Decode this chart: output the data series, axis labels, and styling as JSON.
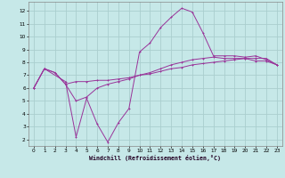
{
  "xlabel": "Windchill (Refroidissement éolien,°C)",
  "x_ticks": [
    0,
    1,
    2,
    3,
    4,
    5,
    6,
    7,
    8,
    9,
    10,
    11,
    12,
    13,
    14,
    15,
    16,
    17,
    18,
    19,
    20,
    21,
    22,
    23
  ],
  "y_ticks": [
    2,
    3,
    4,
    5,
    6,
    7,
    8,
    9,
    10,
    11,
    12
  ],
  "ylim": [
    1.5,
    12.7
  ],
  "xlim": [
    -0.5,
    23.5
  ],
  "bg_color": "#c6e8e8",
  "line_color": "#993399",
  "grid_color": "#aacece",
  "line1_x": [
    0,
    1,
    2,
    3,
    4,
    5,
    6,
    7,
    8,
    9,
    10,
    11,
    12,
    13,
    14,
    15,
    16,
    17,
    18,
    19,
    20,
    21,
    22,
    23
  ],
  "line1_y": [
    6.0,
    7.5,
    7.2,
    6.3,
    6.5,
    6.5,
    6.6,
    6.6,
    6.7,
    6.8,
    7.0,
    7.1,
    7.3,
    7.5,
    7.6,
    7.8,
    7.9,
    8.0,
    8.1,
    8.2,
    8.3,
    8.3,
    8.3,
    7.8
  ],
  "line2_x": [
    0,
    1,
    2,
    3,
    4,
    5,
    6,
    7,
    8,
    9,
    10,
    11,
    12,
    13,
    14,
    15,
    16,
    17,
    18,
    19,
    20,
    21,
    22,
    23
  ],
  "line2_y": [
    6.0,
    7.5,
    7.2,
    6.3,
    5.0,
    5.3,
    6.0,
    6.3,
    6.5,
    6.7,
    7.0,
    7.2,
    7.5,
    7.8,
    8.0,
    8.2,
    8.3,
    8.4,
    8.3,
    8.3,
    8.3,
    8.1,
    8.1,
    7.8
  ],
  "line3_x": [
    0,
    1,
    3,
    4,
    5,
    6,
    7,
    8,
    9,
    10,
    11,
    12,
    13,
    14,
    15,
    16,
    17,
    18,
    19,
    20,
    21,
    22,
    23
  ],
  "line3_y": [
    6.0,
    7.5,
    6.5,
    2.2,
    5.2,
    3.2,
    1.8,
    3.3,
    4.4,
    8.8,
    9.5,
    10.7,
    11.5,
    12.2,
    11.9,
    10.3,
    8.5,
    8.5,
    8.5,
    8.4,
    8.5,
    8.2,
    7.8
  ],
  "tick_fontsize": 4.2,
  "xlabel_fontsize": 4.8,
  "lw": 0.7,
  "ms": 2.0
}
